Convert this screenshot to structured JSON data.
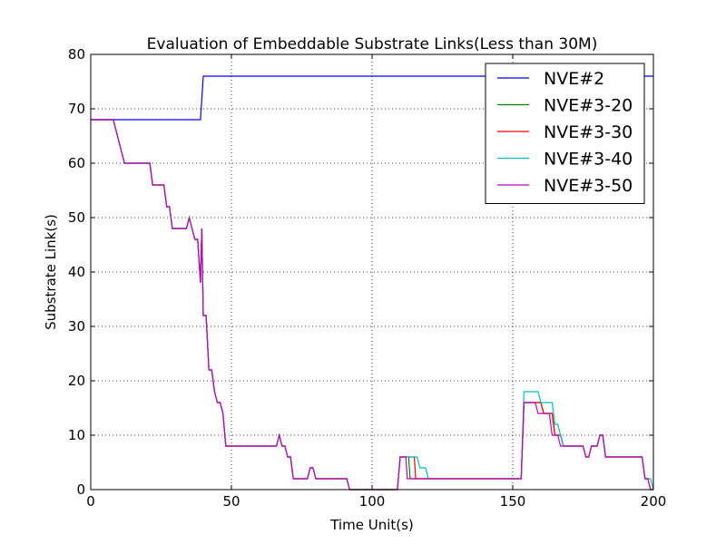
{
  "chart_data": {
    "type": "line",
    "title": "Evaluation of Embeddable Substrate Links(Less than 30M)",
    "xlabel": "Time Unit(s)",
    "ylabel": "Substrate Link(s)",
    "xlim": [
      0,
      200
    ],
    "ylim": [
      0,
      80
    ],
    "xticks": [
      0,
      50,
      100,
      150,
      200
    ],
    "yticks": [
      0,
      10,
      20,
      30,
      40,
      50,
      60,
      70,
      80
    ],
    "grid": true,
    "legend_position": "top-right",
    "series": [
      {
        "name": "NVE#2",
        "color": "#0000ff",
        "x": [
          0,
          39,
          40,
          200
        ],
        "y": [
          68,
          68,
          76,
          76
        ]
      },
      {
        "name": "NVE#3-20",
        "color": "#008000",
        "x": [
          0,
          8,
          9,
          10,
          11,
          12,
          21,
          22,
          26,
          27,
          28,
          29,
          30,
          31,
          34,
          35,
          36,
          37,
          38,
          39,
          39.5,
          40,
          41,
          42,
          43,
          44,
          45,
          46,
          47,
          48,
          49,
          50,
          66,
          67,
          68,
          69,
          70,
          71,
          72,
          73,
          77,
          78,
          79,
          80,
          91,
          92,
          109,
          110,
          111,
          113,
          113.5,
          153,
          154,
          160,
          161,
          164,
          165,
          167,
          168,
          175,
          176,
          177,
          178,
          180,
          181,
          182,
          183,
          196,
          197,
          198,
          199,
          200
        ],
        "y": [
          68,
          68,
          66,
          64,
          62,
          60,
          60,
          56,
          56,
          52,
          52,
          48,
          48,
          48,
          48,
          50,
          48,
          46,
          46,
          38,
          48,
          32,
          32,
          22,
          22,
          18,
          16,
          16,
          14,
          8,
          8,
          8,
          8,
          10,
          8,
          8,
          6,
          6,
          2,
          2,
          2,
          4,
          4,
          2,
          2,
          0,
          0,
          6,
          6,
          6,
          2,
          2,
          16,
          16,
          14,
          14,
          10,
          10,
          8,
          8,
          6,
          6,
          8,
          8,
          10,
          10,
          6,
          6,
          2,
          2,
          0,
          0
        ]
      },
      {
        "name": "NVE#3-30",
        "color": "#ff0000",
        "x": [
          0,
          8,
          9,
          10,
          11,
          12,
          21,
          22,
          26,
          27,
          28,
          29,
          30,
          31,
          34,
          35,
          36,
          37,
          38,
          39,
          39.5,
          40,
          41,
          42,
          43,
          44,
          45,
          46,
          47,
          48,
          49,
          50,
          66,
          67,
          68,
          69,
          70,
          71,
          72,
          73,
          77,
          78,
          79,
          80,
          91,
          92,
          109,
          110,
          111,
          115,
          115.5,
          153,
          154,
          160,
          161,
          164,
          165,
          167,
          168,
          175,
          176,
          177,
          178,
          180,
          181,
          182,
          183,
          196,
          197,
          198,
          199,
          200
        ],
        "y": [
          68,
          68,
          66,
          64,
          62,
          60,
          60,
          56,
          56,
          52,
          52,
          48,
          48,
          48,
          48,
          50,
          48,
          46,
          46,
          38,
          48,
          32,
          32,
          22,
          22,
          18,
          16,
          16,
          14,
          8,
          8,
          8,
          8,
          10,
          8,
          8,
          6,
          6,
          2,
          2,
          2,
          4,
          4,
          2,
          2,
          0,
          0,
          6,
          6,
          6,
          2,
          2,
          16,
          16,
          14,
          14,
          10,
          10,
          8,
          8,
          6,
          6,
          8,
          8,
          10,
          10,
          6,
          6,
          2,
          2,
          0,
          0
        ]
      },
      {
        "name": "NVE#3-40",
        "color": "#00bfbf",
        "x": [
          0,
          8,
          9,
          10,
          11,
          12,
          21,
          22,
          26,
          27,
          28,
          29,
          30,
          31,
          34,
          35,
          36,
          37,
          38,
          39,
          39.5,
          40,
          41,
          42,
          43,
          44,
          45,
          46,
          47,
          48,
          49,
          50,
          66,
          67,
          68,
          69,
          70,
          71,
          72,
          73,
          77,
          78,
          79,
          80,
          91,
          92,
          109,
          110,
          111,
          116,
          117,
          119,
          120,
          153,
          154,
          159,
          160,
          164,
          165,
          166,
          167,
          168,
          175,
          176,
          177,
          178,
          180,
          181,
          182,
          183,
          196,
          197,
          199,
          200
        ],
        "y": [
          68,
          68,
          66,
          64,
          62,
          60,
          60,
          56,
          56,
          52,
          52,
          48,
          48,
          48,
          48,
          50,
          48,
          46,
          46,
          38,
          48,
          32,
          32,
          22,
          22,
          18,
          16,
          16,
          14,
          8,
          8,
          8,
          8,
          10,
          8,
          8,
          6,
          6,
          2,
          2,
          2,
          4,
          4,
          2,
          2,
          0,
          0,
          6,
          6,
          6,
          4,
          4,
          2,
          2,
          18,
          18,
          16,
          16,
          12,
          12,
          10,
          8,
          8,
          6,
          6,
          8,
          8,
          10,
          10,
          6,
          6,
          2,
          2,
          0
        ]
      },
      {
        "name": "NVE#3-50",
        "color": "#bf00bf",
        "x": [
          0,
          8,
          9,
          10,
          11,
          12,
          21,
          22,
          26,
          27,
          28,
          29,
          30,
          31,
          34,
          35,
          36,
          37,
          38,
          39,
          39.5,
          40,
          41,
          42,
          43,
          44,
          45,
          46,
          47,
          48,
          49,
          50,
          66,
          67,
          68,
          69,
          70,
          71,
          72,
          73,
          77,
          78,
          79,
          80,
          91,
          92,
          109,
          110,
          111,
          112,
          112.5,
          153,
          154,
          158,
          159,
          163,
          164,
          166,
          167,
          175,
          176,
          177,
          178,
          180,
          181,
          182,
          183,
          196,
          197,
          198,
          199,
          200
        ],
        "y": [
          68,
          68,
          66,
          64,
          62,
          60,
          60,
          56,
          56,
          52,
          52,
          48,
          48,
          48,
          48,
          50,
          48,
          46,
          46,
          38,
          48,
          32,
          32,
          22,
          22,
          18,
          16,
          16,
          14,
          8,
          8,
          8,
          8,
          10,
          8,
          8,
          6,
          6,
          2,
          2,
          2,
          4,
          4,
          2,
          2,
          0,
          0,
          6,
          6,
          6,
          2,
          2,
          16,
          16,
          14,
          14,
          10,
          10,
          8,
          8,
          6,
          6,
          8,
          8,
          10,
          10,
          6,
          6,
          2,
          2,
          0,
          0
        ]
      }
    ]
  }
}
